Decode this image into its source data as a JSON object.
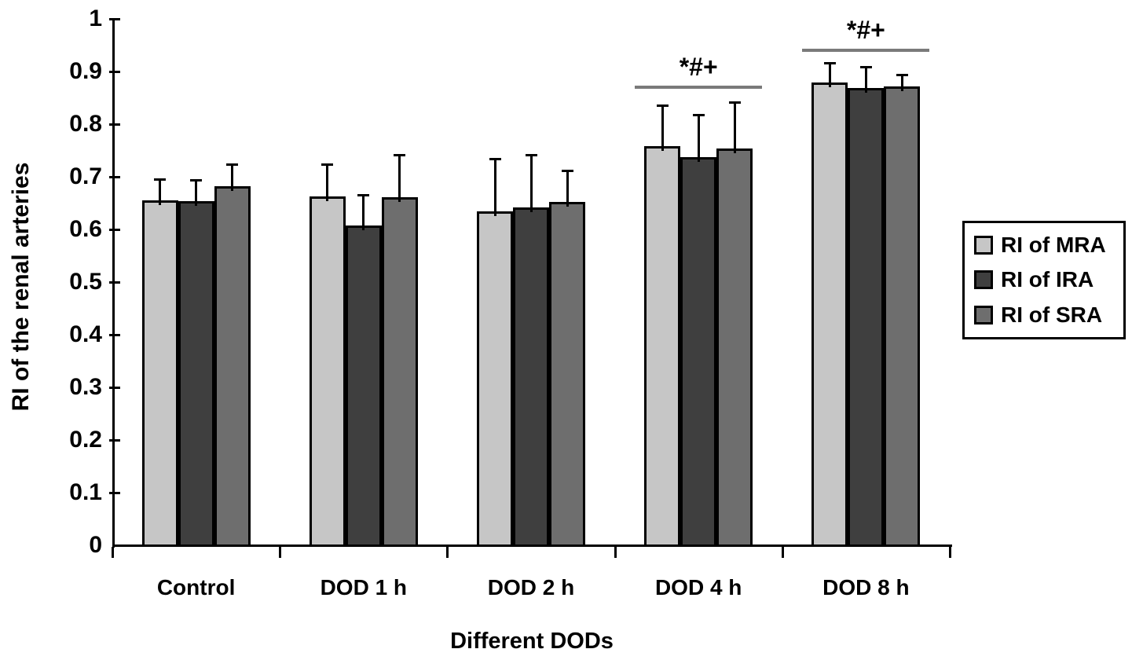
{
  "figure": {
    "background": "#ffffff",
    "text_color": "#000000"
  },
  "chart_data": {
    "type": "bar",
    "title": "",
    "xlabel": "Different DODs",
    "ylabel": "RI of the renal arteries",
    "categories": [
      "Control",
      "DOD 1 h",
      "DOD 2 h",
      "DOD 4 h",
      "DOD 8 h"
    ],
    "series": [
      {
        "name": "RI of MRA",
        "color": "#c6c6c6",
        "values": [
          0.655,
          0.663,
          0.634,
          0.758,
          0.879
        ],
        "errors_up": [
          0.042,
          0.062,
          0.102,
          0.08,
          0.039
        ]
      },
      {
        "name": "RI of IRA",
        "color": "#3f3f3f",
        "values": [
          0.653,
          0.607,
          0.642,
          0.738,
          0.869
        ],
        "errors_up": [
          0.043,
          0.06,
          0.101,
          0.081,
          0.041
        ]
      },
      {
        "name": "RI of SRA",
        "color": "#6e6e6e",
        "values": [
          0.682,
          0.661,
          0.652,
          0.754,
          0.872
        ],
        "errors_up": [
          0.044,
          0.082,
          0.061,
          0.089,
          0.023
        ]
      }
    ],
    "ylim": [
      0,
      1
    ],
    "yticks": [
      0,
      0.1,
      0.2,
      0.3,
      0.4,
      0.5,
      0.6,
      0.7,
      0.8,
      0.9,
      1
    ],
    "ytick_labels": [
      "0",
      "0.1",
      "0.2",
      "0.3",
      "0.4",
      "0.5",
      "0.6",
      "0.7",
      "0.8",
      "0.9",
      "1"
    ],
    "grid": false,
    "legend_position": "right",
    "bar_border_color": "#000000",
    "error_bar_color": "#000000",
    "annotation_line_color": "#7a7a7a",
    "annotations": [
      {
        "text": "*#+",
        "category": "DOD 4 h",
        "category_index": 3,
        "line_y": 0.873
      },
      {
        "text": "*#+",
        "category": "DOD 8 h",
        "category_index": 4,
        "line_y": 0.943
      }
    ]
  }
}
